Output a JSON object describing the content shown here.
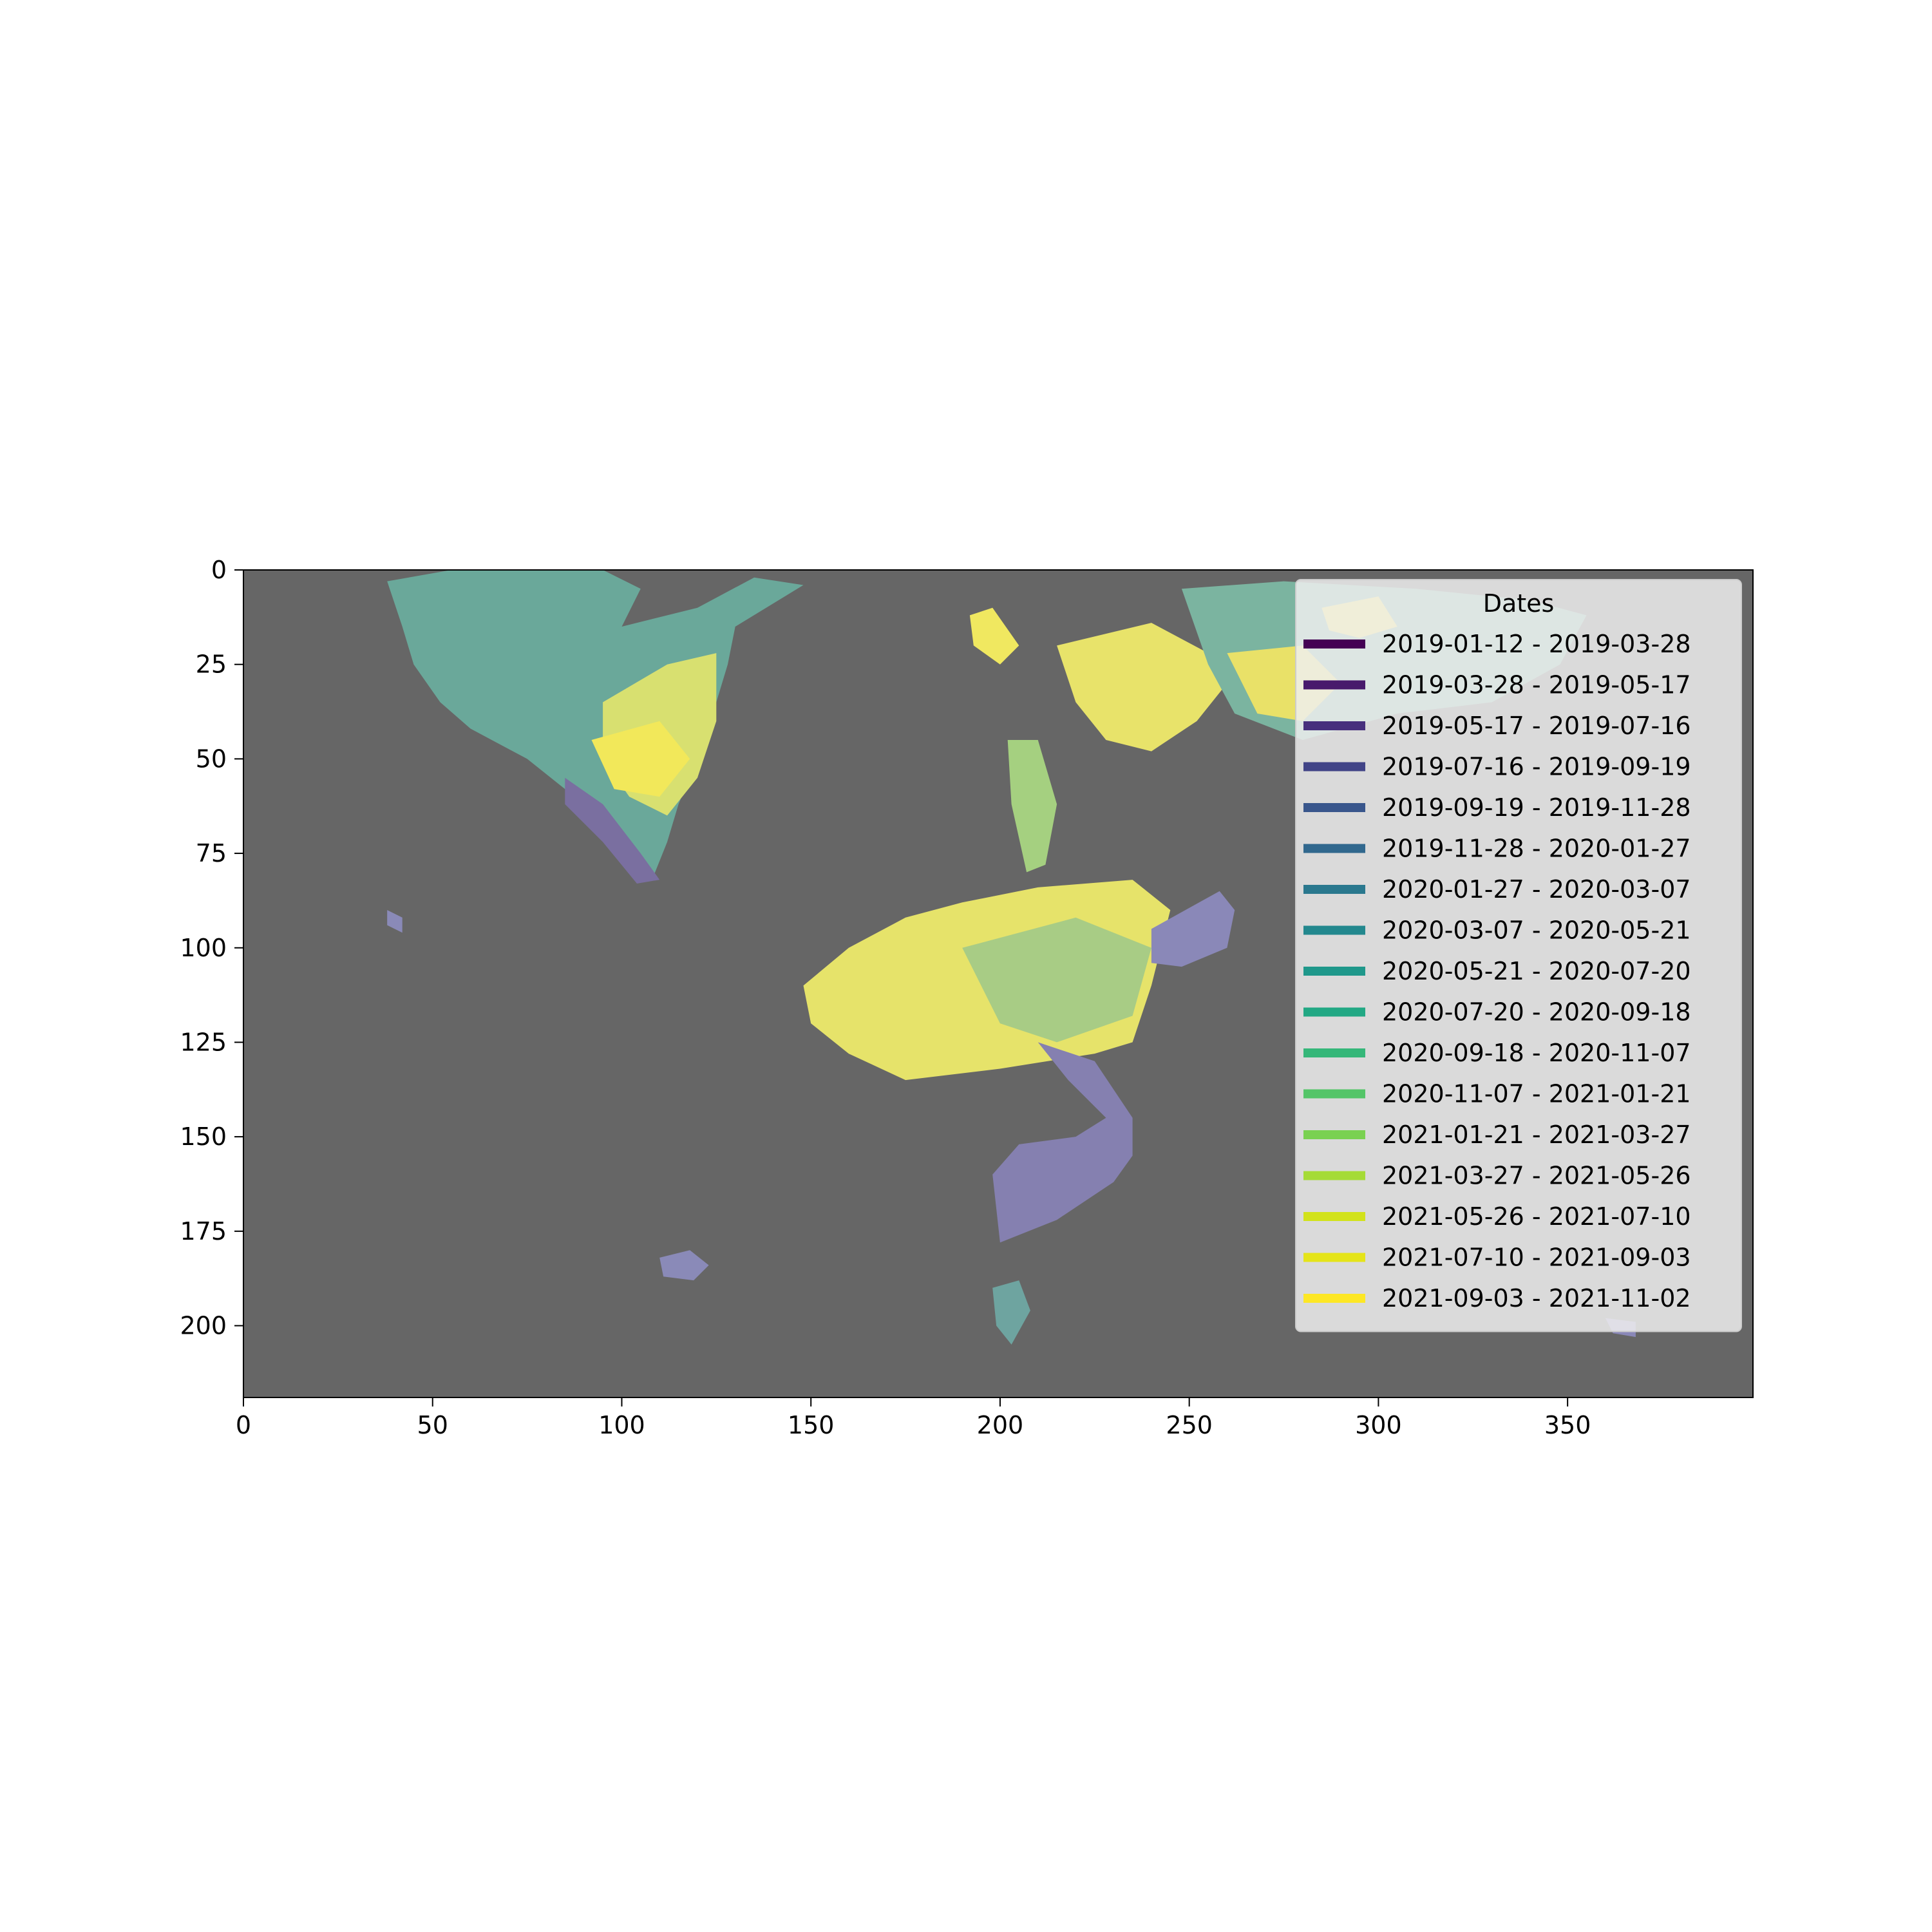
{
  "chart_data": {
    "type": "heatmap",
    "title": "",
    "xlabel": "",
    "ylabel": "",
    "xlim": [
      0,
      399
    ],
    "ylim": [
      219,
      0
    ],
    "x_ticks": [
      0,
      50,
      100,
      150,
      200,
      250,
      300,
      350
    ],
    "y_ticks": [
      0,
      25,
      50,
      75,
      100,
      125,
      150,
      175,
      200
    ],
    "x_tick_labels": [
      "0",
      "50",
      "100",
      "150",
      "200",
      "250",
      "300",
      "350"
    ],
    "y_tick_labels": [
      "0",
      "25",
      "50",
      "75",
      "100",
      "125",
      "150",
      "175",
      "200"
    ],
    "background_color": "#666666",
    "grid": false,
    "legend": {
      "title": "Dates",
      "placement": "upper-right",
      "entries": [
        {
          "label": "2019-01-12 - 2019-03-28",
          "color": "#440154"
        },
        {
          "label": "2019-03-28 - 2019-05-17",
          "color": "#481a6c"
        },
        {
          "label": "2019-05-17 - 2019-07-16",
          "color": "#472f7d"
        },
        {
          "label": "2019-07-16 - 2019-09-19",
          "color": "#414487"
        },
        {
          "label": "2019-09-19 - 2019-11-28",
          "color": "#39568c"
        },
        {
          "label": "2019-11-28 - 2020-01-27",
          "color": "#31688e"
        },
        {
          "label": "2020-01-27 - 2020-03-07",
          "color": "#2a788e"
        },
        {
          "label": "2020-03-07 - 2020-05-21",
          "color": "#23888e"
        },
        {
          "label": "2020-05-21 - 2020-07-20",
          "color": "#1f988b"
        },
        {
          "label": "2020-07-20 - 2020-09-18",
          "color": "#22a884"
        },
        {
          "label": "2020-09-18 - 2020-11-07",
          "color": "#35b779"
        },
        {
          "label": "2020-11-07 - 2021-01-21",
          "color": "#54c568"
        },
        {
          "label": "2021-01-21 - 2021-03-27",
          "color": "#7ad151"
        },
        {
          "label": "2021-03-27 - 2021-05-26",
          "color": "#a5db36"
        },
        {
          "label": "2021-05-26 - 2021-07-10",
          "color": "#d2e21b"
        },
        {
          "label": "2021-07-10 - 2021-09-03",
          "color": "#e5e419"
        },
        {
          "label": "2021-09-03 - 2021-11-02",
          "color": "#fde725"
        }
      ]
    },
    "regions": [
      {
        "name": "northwest",
        "color": "#6aa89a",
        "points": [
          [
            38,
            3
          ],
          [
            55,
            0
          ],
          [
            95,
            0
          ],
          [
            105,
            5
          ],
          [
            100,
            15
          ],
          [
            120,
            10
          ],
          [
            135,
            2
          ],
          [
            148,
            4
          ],
          [
            130,
            15
          ],
          [
            128,
            25
          ],
          [
            125,
            35
          ],
          [
            120,
            50
          ],
          [
            115,
            62
          ],
          [
            112,
            72
          ],
          [
            108,
            82
          ],
          [
            100,
            75
          ],
          [
            92,
            68
          ],
          [
            85,
            58
          ],
          [
            75,
            50
          ],
          [
            60,
            42
          ],
          [
            52,
            35
          ],
          [
            45,
            25
          ],
          [
            42,
            15
          ]
        ]
      },
      {
        "name": "northwest-core",
        "color": "#d8e070",
        "points": [
          [
            95,
            35
          ],
          [
            112,
            25
          ],
          [
            125,
            22
          ],
          [
            125,
            40
          ],
          [
            120,
            55
          ],
          [
            112,
            65
          ],
          [
            102,
            60
          ],
          [
            95,
            50
          ]
        ]
      },
      {
        "name": "northwest-highlight",
        "color": "#f2e85a",
        "points": [
          [
            92,
            45
          ],
          [
            110,
            40
          ],
          [
            118,
            50
          ],
          [
            110,
            60
          ],
          [
            98,
            58
          ]
        ]
      },
      {
        "name": "northwest-edge",
        "color": "#7a6fa0",
        "points": [
          [
            85,
            55
          ],
          [
            95,
            62
          ],
          [
            105,
            75
          ],
          [
            110,
            82
          ],
          [
            104,
            83
          ],
          [
            95,
            72
          ],
          [
            85,
            62
          ]
        ]
      },
      {
        "name": "northeast-left",
        "color": "#f0e860",
        "points": [
          [
            192,
            12
          ],
          [
            198,
            10
          ],
          [
            205,
            20
          ],
          [
            200,
            25
          ],
          [
            193,
            20
          ]
        ]
      },
      {
        "name": "northeast-main",
        "color": "#e8e36a",
        "points": [
          [
            215,
            20
          ],
          [
            240,
            14
          ],
          [
            255,
            22
          ],
          [
            260,
            30
          ],
          [
            252,
            40
          ],
          [
            240,
            48
          ],
          [
            228,
            45
          ],
          [
            220,
            35
          ]
        ]
      },
      {
        "name": "northeast-band",
        "color": "#7bb4a0",
        "points": [
          [
            248,
            5
          ],
          [
            275,
            3
          ],
          [
            310,
            5
          ],
          [
            340,
            8
          ],
          [
            355,
            12
          ],
          [
            348,
            25
          ],
          [
            330,
            35
          ],
          [
            305,
            38
          ],
          [
            280,
            45
          ],
          [
            262,
            38
          ],
          [
            255,
            25
          ]
        ]
      },
      {
        "name": "northeast-yellow",
        "color": "#f3e65c",
        "points": [
          [
            285,
            10
          ],
          [
            300,
            7
          ],
          [
            305,
            15
          ],
          [
            295,
            18
          ],
          [
            287,
            16
          ]
        ]
      },
      {
        "name": "northeast-yellow2",
        "color": "#e9e168",
        "points": [
          [
            260,
            22
          ],
          [
            280,
            20
          ],
          [
            290,
            30
          ],
          [
            280,
            40
          ],
          [
            268,
            38
          ]
        ]
      },
      {
        "name": "central-column",
        "color": "#a5d080",
        "points": [
          [
            202,
            45
          ],
          [
            210,
            45
          ],
          [
            215,
            62
          ],
          [
            212,
            78
          ],
          [
            207,
            80
          ],
          [
            203,
            62
          ]
        ]
      },
      {
        "name": "central-main",
        "color": "#e6e36a",
        "points": [
          [
            148,
            110
          ],
          [
            160,
            100
          ],
          [
            175,
            92
          ],
          [
            190,
            88
          ],
          [
            210,
            84
          ],
          [
            235,
            82
          ],
          [
            245,
            90
          ],
          [
            240,
            110
          ],
          [
            235,
            125
          ],
          [
            225,
            128
          ],
          [
            200,
            132
          ],
          [
            175,
            135
          ],
          [
            160,
            128
          ],
          [
            150,
            120
          ]
        ]
      },
      {
        "name": "central-mid",
        "color": "#a8cc85",
        "points": [
          [
            190,
            100
          ],
          [
            220,
            92
          ],
          [
            240,
            100
          ],
          [
            235,
            118
          ],
          [
            215,
            125
          ],
          [
            200,
            120
          ]
        ]
      },
      {
        "name": "central-purple-right",
        "color": "#8a88b8",
        "points": [
          [
            240,
            95
          ],
          [
            258,
            85
          ],
          [
            262,
            90
          ],
          [
            260,
            100
          ],
          [
            248,
            105
          ],
          [
            240,
            104
          ]
        ]
      },
      {
        "name": "central-purple-tail",
        "color": "#8580b0",
        "points": [
          [
            210,
            125
          ],
          [
            225,
            130
          ],
          [
            235,
            145
          ],
          [
            235,
            155
          ],
          [
            230,
            162
          ],
          [
            215,
            172
          ],
          [
            200,
            178
          ],
          [
            198,
            160
          ],
          [
            205,
            152
          ],
          [
            220,
            150
          ],
          [
            228,
            145
          ],
          [
            218,
            135
          ]
        ]
      },
      {
        "name": "south-blob",
        "color": "#8a8ab8",
        "points": [
          [
            110,
            182
          ],
          [
            118,
            180
          ],
          [
            123,
            184
          ],
          [
            119,
            188
          ],
          [
            111,
            187
          ]
        ]
      },
      {
        "name": "small-left",
        "color": "#8a8ab8",
        "points": [
          [
            38,
            90
          ],
          [
            42,
            92
          ],
          [
            42,
            96
          ],
          [
            38,
            94
          ]
        ]
      },
      {
        "name": "legend-right-patch",
        "color": "#8a88b8",
        "points": [
          [
            360,
            198
          ],
          [
            368,
            199
          ],
          [
            368,
            203
          ],
          [
            362,
            202
          ]
        ]
      },
      {
        "name": "bottom-scatter",
        "color": "#6ea4a0",
        "points": [
          [
            198,
            190
          ],
          [
            205,
            188
          ],
          [
            208,
            196
          ],
          [
            203,
            205
          ],
          [
            199,
            200
          ]
        ]
      }
    ]
  }
}
